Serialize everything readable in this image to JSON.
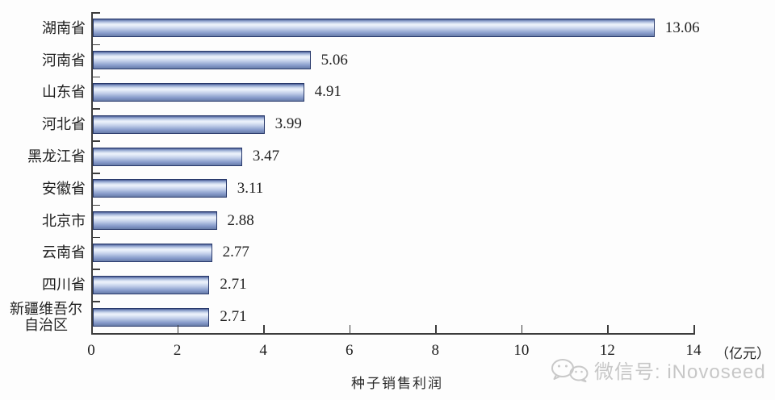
{
  "chart_data": {
    "type": "bar",
    "orientation": "horizontal",
    "title": "",
    "categories": [
      "湖南省",
      "河南省",
      "山东省",
      "河北省",
      "黑龙江省",
      "安徽省",
      "北京市",
      "云南省",
      "四川省",
      "新疆维吾尔自治区"
    ],
    "values": [
      13.06,
      5.06,
      4.91,
      3.99,
      3.47,
      3.11,
      2.88,
      2.77,
      2.71,
      2.71
    ],
    "value_labels": [
      "13.06",
      "5.06",
      "4.91",
      "3.99",
      "3.47",
      "3.11",
      "2.88",
      "2.77",
      "2.71",
      "2.71"
    ],
    "xlabel": "种子销售利润",
    "unit_label": "（亿元）",
    "x_ticks": [
      0,
      2,
      4,
      6,
      8,
      10,
      12,
      14
    ],
    "xlim": [
      0,
      14
    ],
    "grid": false,
    "legend": "none",
    "bar_fill_light": "#edf2fb",
    "bar_fill_dark": "#44568d",
    "bar_border_color": "#28396b",
    "axis_color": "#3c3c3c"
  },
  "watermark": {
    "icon": "wechat-icon",
    "text": "微信号: iNovoseed",
    "color": "#c7c7c7"
  }
}
